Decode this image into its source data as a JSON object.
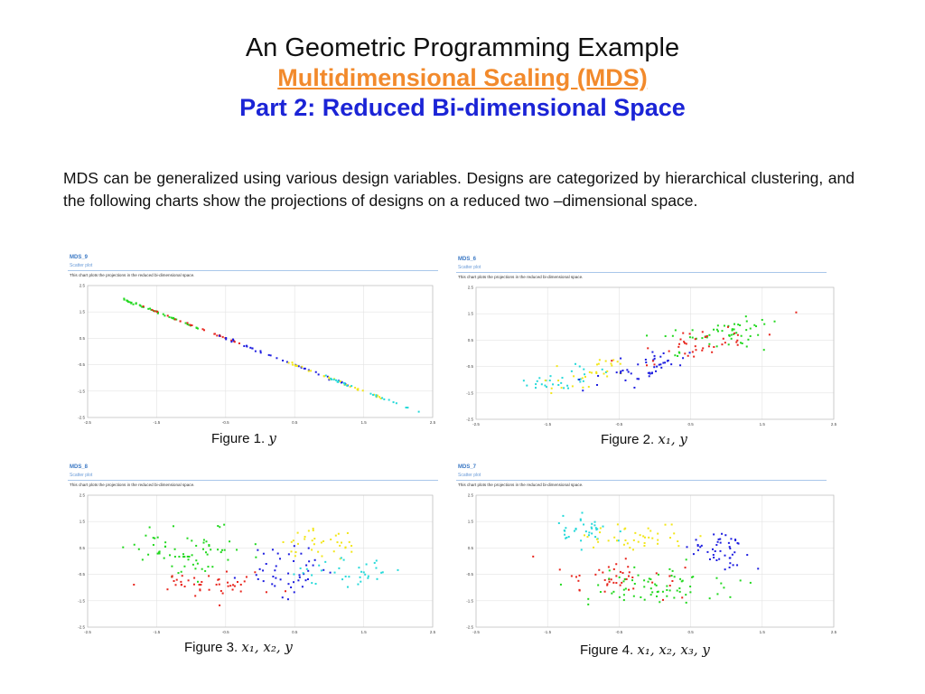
{
  "title": {
    "line1": "An Geometric Programming Example",
    "line2": "Multidimensional Scaling (MDS)",
    "line3": "Part 2: Reduced Bi-dimensional Space"
  },
  "intro": "MDS can be generalized using various design variables.  Designs are categorized by hierarchical clustering, and the following charts show the projections of designs on a reduced two –dimensional space.",
  "colors": {
    "red": "#e8241c",
    "green": "#22d81f",
    "blue": "#1d1de0",
    "cyan": "#25d9d9",
    "yellow": "#f2e61a"
  },
  "panels": [
    {
      "title": "MDS_9",
      "subtitle": "Scatter plot",
      "description": "This chart plots the projections in the reduced bi-dimensional space.",
      "caption_prefix": "Figure 1.",
      "caption_math": "y",
      "chart_data": {
        "type": "scatter",
        "pattern": "line",
        "xlim": [
          -2.5,
          2.5
        ],
        "ylim": [
          -2.5,
          2.5
        ],
        "xticks": [
          "-2.5",
          "-1.5",
          "-0.5",
          "0.5",
          "1.5",
          "2.5"
        ],
        "yticks": [
          "2.5",
          "1.5",
          "0.5",
          "-0.5",
          "-1.5",
          "-2.5"
        ],
        "x_range": [
          -2.0,
          2.3
        ],
        "slope": -1,
        "noise": 0.02,
        "series": [
          {
            "name": "cluster-green",
            "color": "#22d81f",
            "range": [
              -2.0,
              -0.9
            ],
            "count": 40
          },
          {
            "name": "cluster-red",
            "color": "#e8241c",
            "range": [
              -1.7,
              -0.3
            ],
            "count": 25
          },
          {
            "name": "cluster-blue",
            "color": "#1d1de0",
            "range": [
              -0.6,
              1.3
            ],
            "count": 40
          },
          {
            "name": "cluster-yellow",
            "color": "#f2e61a",
            "range": [
              0.4,
              1.8
            ],
            "count": 30
          },
          {
            "name": "cluster-cyan",
            "color": "#25d9d9",
            "range": [
              0.8,
              2.3
            ],
            "count": 25
          }
        ]
      }
    },
    {
      "title": "MDS_6",
      "subtitle": "Scatter plot",
      "description": "This chart plots the projections in the reduced bi-dimensional space.",
      "caption_prefix": "Figure 2.",
      "caption_math": "x₁, y",
      "chart_data": {
        "type": "scatter",
        "pattern": "band",
        "xlim": [
          -2.5,
          2.5
        ],
        "ylim": [
          -2.5,
          2.5
        ],
        "xticks": [
          "-2.5",
          "-1.5",
          "-0.5",
          "0.5",
          "1.5",
          "2.5"
        ],
        "yticks": [
          "2.5",
          "1.5",
          "0.5",
          "-0.5",
          "-1.5",
          "-2.5"
        ],
        "series": [
          {
            "name": "cluster-cyan",
            "color": "#25d9d9",
            "center": [
              -1.3,
              -1.0
            ],
            "spread": [
              0.55,
              0.35
            ],
            "count": 30
          },
          {
            "name": "cluster-yellow",
            "color": "#f2e61a",
            "center": [
              -0.8,
              -0.7
            ],
            "spread": [
              0.5,
              0.4
            ],
            "count": 30
          },
          {
            "name": "cluster-blue",
            "color": "#1d1de0",
            "center": [
              -0.2,
              -0.6
            ],
            "spread": [
              0.6,
              0.45
            ],
            "count": 45
          },
          {
            "name": "cluster-green",
            "color": "#22d81f",
            "center": [
              1.0,
              0.8
            ],
            "spread": [
              0.7,
              0.45
            ],
            "count": 55
          },
          {
            "name": "cluster-red",
            "color": "#e8241c",
            "center": [
              0.7,
              0.4
            ],
            "spread": [
              0.7,
              0.45
            ],
            "count": 40
          }
        ]
      }
    },
    {
      "title": "MDS_8",
      "subtitle": "Scatter plot",
      "description": "This chart plots the projections in the reduced bi-dimensional space.",
      "caption_prefix": "Figure 3.",
      "caption_math": "x₁, x₂, y",
      "chart_data": {
        "type": "scatter",
        "pattern": "cloud",
        "xlim": [
          -2.5,
          2.5
        ],
        "ylim": [
          -2.5,
          2.5
        ],
        "xticks": [
          "-2.5",
          "-1.5",
          "-0.5",
          "0.5",
          "1.5",
          "2.5"
        ],
        "yticks": [
          "2.5",
          "1.5",
          "0.5",
          "-0.5",
          "-1.5",
          "-2.5"
        ],
        "series": [
          {
            "name": "cluster-green",
            "color": "#22d81f",
            "center": [
              -1.0,
              0.4
            ],
            "spread": [
              0.7,
              0.8
            ],
            "count": 70
          },
          {
            "name": "cluster-red",
            "color": "#e8241c",
            "center": [
              -0.7,
              -0.9
            ],
            "spread": [
              0.7,
              0.4
            ],
            "count": 45
          },
          {
            "name": "cluster-blue",
            "color": "#1d1de0",
            "center": [
              0.4,
              -0.4
            ],
            "spread": [
              0.6,
              0.8
            ],
            "count": 45
          },
          {
            "name": "cluster-yellow",
            "color": "#f2e61a",
            "center": [
              0.9,
              0.7
            ],
            "spread": [
              0.5,
              0.5
            ],
            "count": 35
          },
          {
            "name": "cluster-cyan",
            "color": "#25d9d9",
            "center": [
              1.3,
              -0.4
            ],
            "spread": [
              0.6,
              0.5
            ],
            "count": 35
          }
        ]
      }
    },
    {
      "title": "MDS_7",
      "subtitle": "Scatter plot",
      "description": "This chart plots the projections in the reduced bi-dimensional space.",
      "caption_prefix": "Figure 4.",
      "caption_math": "x₁, x₂,  x₃,  y",
      "chart_data": {
        "type": "scatter",
        "pattern": "cloud",
        "xlim": [
          -2.5,
          2.5
        ],
        "ylim": [
          -2.5,
          2.5
        ],
        "xticks": [
          "-2.5",
          "-1.5",
          "-0.5",
          "0.5",
          "1.5",
          "2.5"
        ],
        "yticks": [
          "2.5",
          "1.5",
          "0.5",
          "-0.5",
          "-1.5",
          "-2.5"
        ],
        "series": [
          {
            "name": "cluster-cyan",
            "color": "#25d9d9",
            "center": [
              -1.0,
              1.2
            ],
            "spread": [
              0.35,
              0.5
            ],
            "count": 35
          },
          {
            "name": "cluster-yellow",
            "color": "#f2e61a",
            "center": [
              -0.2,
              0.9
            ],
            "spread": [
              0.6,
              0.5
            ],
            "count": 40
          },
          {
            "name": "cluster-blue",
            "color": "#1d1de0",
            "center": [
              0.9,
              0.3
            ],
            "spread": [
              0.4,
              0.7
            ],
            "count": 45
          },
          {
            "name": "cluster-red",
            "color": "#e8241c",
            "center": [
              -0.5,
              -0.6
            ],
            "spread": [
              0.7,
              0.6
            ],
            "count": 45
          },
          {
            "name": "cluster-green",
            "color": "#22d81f",
            "center": [
              0.1,
              -0.9
            ],
            "spread": [
              1.0,
              0.6
            ],
            "count": 70
          }
        ]
      }
    }
  ]
}
